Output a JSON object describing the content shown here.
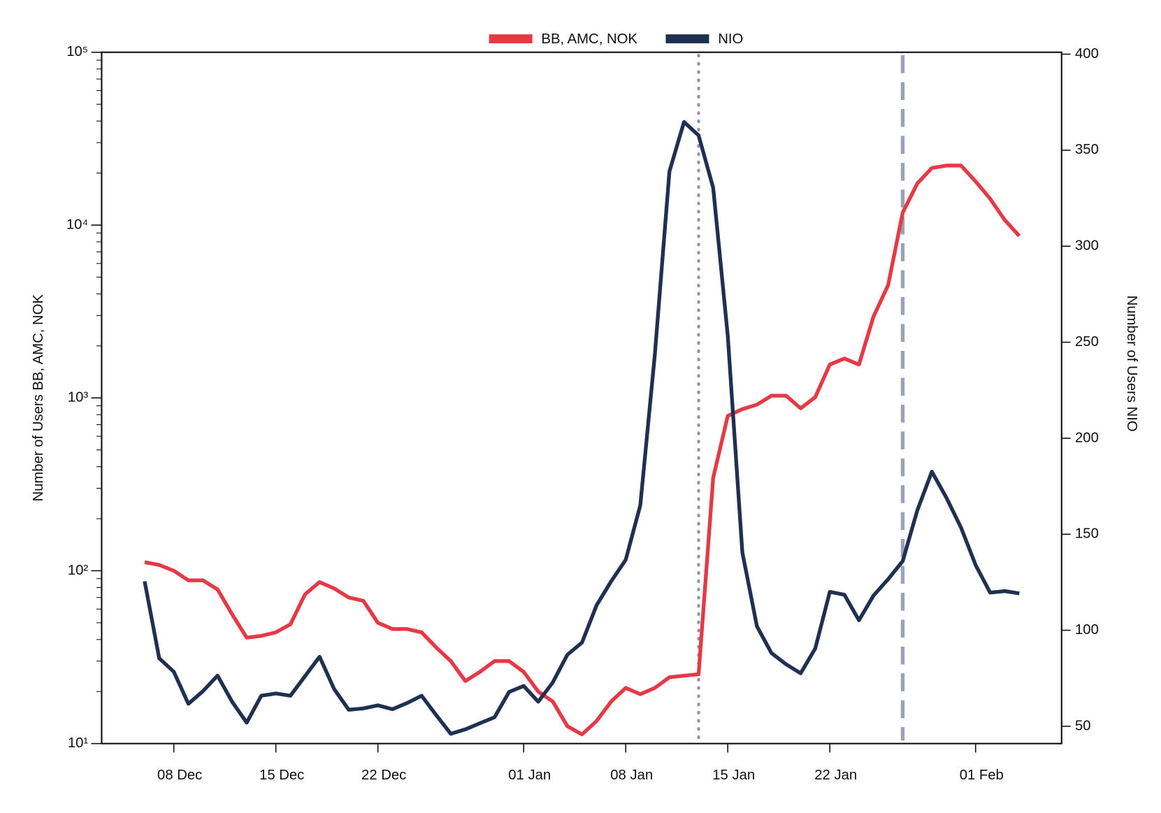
{
  "chart_data": {
    "type": "line",
    "x": [
      "06 Dec",
      "07 Dec",
      "08 Dec",
      "09 Dec",
      "10 Dec",
      "11 Dec",
      "12 Dec",
      "13 Dec",
      "14 Dec",
      "15 Dec",
      "16 Dec",
      "17 Dec",
      "18 Dec",
      "19 Dec",
      "20 Dec",
      "21 Dec",
      "22 Dec",
      "23 Dec",
      "24 Dec",
      "25 Dec",
      "26 Dec",
      "27 Dec",
      "28 Dec",
      "29 Dec",
      "30 Dec",
      "31 Dec",
      "01 Jan",
      "02 Jan",
      "03 Jan",
      "04 Jan",
      "05 Jan",
      "06 Jan",
      "07 Jan",
      "08 Jan",
      "09 Jan",
      "10 Jan",
      "11 Jan",
      "12 Jan",
      "13 Jan",
      "14 Jan",
      "15 Jan",
      "16 Jan",
      "17 Jan",
      "18 Jan",
      "19 Jan",
      "20 Jan",
      "21 Jan",
      "22 Jan",
      "23 Jan",
      "24 Jan",
      "25 Jan",
      "26 Jan",
      "27 Jan",
      "28 Jan",
      "29 Jan",
      "30 Jan",
      "31 Jan",
      "01 Feb",
      "02 Feb",
      "03 Feb",
      "04 Feb"
    ],
    "xticks": [
      "08 Dec",
      "15 Dec",
      "22 Dec",
      "01 Jan",
      "08 Jan",
      "15 Jan",
      "22 Jan",
      "01 Feb"
    ],
    "ylabel": "Number of Users BB, AMC, NOK",
    "y2label": "Number of Users NIO",
    "ylim": [
      10,
      100000
    ],
    "log_y": true,
    "minor_ticks": true,
    "yticks": [
      {
        "value": 10,
        "label": "10¹"
      },
      {
        "value": 100,
        "label": "10²"
      },
      {
        "value": 1000,
        "label": "10³"
      },
      {
        "value": 10000,
        "label": "10⁴"
      },
      {
        "value": 100000,
        "label": "10⁵"
      }
    ],
    "y2lim": [
      41,
      401
    ],
    "y2ticks": [
      50,
      100,
      150,
      200,
      250,
      300,
      350,
      400
    ],
    "legend": "top",
    "series": [
      {
        "name": "BB, AMC, NOK",
        "color": "#e63946",
        "axis": "y",
        "values": [
          112,
          108,
          100,
          88,
          88,
          78,
          56,
          41,
          42,
          44,
          49,
          73,
          86,
          79,
          70,
          67,
          50,
          46,
          46,
          44,
          36,
          30,
          23,
          26,
          30,
          30,
          26,
          20,
          17.5,
          12.6,
          11.3,
          13.5,
          17.5,
          21,
          19.3,
          21,
          24.2,
          24.7,
          25.2,
          345,
          787,
          861,
          914,
          1030,
          1030,
          870,
          1010,
          1560,
          1690,
          1560,
          2960,
          4490,
          11800,
          17400,
          21400,
          22100,
          22100,
          17900,
          14200,
          10700,
          8650
        ]
      },
      {
        "name": "NIO",
        "color": "#1f3050",
        "axis": "y2",
        "values": [
          125.5,
          85.4,
          78.4,
          61.7,
          68.3,
          76.4,
          62.8,
          51.9,
          65.9,
          67.1,
          65.9,
          76.1,
          86.2,
          69.4,
          58.6,
          59.3,
          60.9,
          58.9,
          62.1,
          65.9,
          55.8,
          46.1,
          48.4,
          51.6,
          54.7,
          67.9,
          71,
          62.8,
          72.9,
          87.3,
          93.6,
          113,
          125.5,
          136.7,
          165.1,
          243.7,
          339,
          364.7,
          357.7,
          330.4,
          253.4,
          140.6,
          102.1,
          88.1,
          82.3,
          77.6,
          90.5,
          120,
          118.5,
          105.2,
          118.1,
          126.6,
          136,
          162.4,
          182.6,
          169,
          153.5,
          134,
          119.6,
          120.4,
          119.2
        ]
      }
    ],
    "vlines": [
      {
        "x": "13 Jan",
        "style": "dotted",
        "color": "#8e96a8"
      },
      {
        "x": "27 Jan",
        "style": "dashed",
        "color": "#9aa3b5"
      }
    ]
  }
}
